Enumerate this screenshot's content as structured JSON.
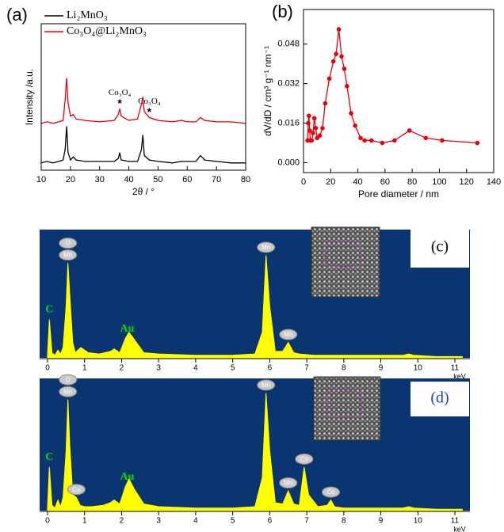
{
  "chart_data": [
    {
      "type": "line",
      "panel_label": "(a)",
      "xlabel": "2θ / °",
      "ylabel": "Intensity /a.u.",
      "xlim": [
        10,
        80
      ],
      "ylim": [
        0,
        100
      ],
      "xticks": [
        10,
        20,
        30,
        40,
        50,
        60,
        70,
        80
      ],
      "x": [
        10,
        12,
        14,
        16,
        17.5,
        18.2,
        18.7,
        19.2,
        20,
        21,
        22,
        25,
        30,
        35,
        36.4,
        36.9,
        37.4,
        40,
        43,
        44.3,
        44.8,
        45.3,
        47,
        50,
        55,
        58,
        60,
        63,
        64.5,
        66,
        70,
        75,
        80
      ],
      "series": [
        {
          "name": "Li₂MnO₃",
          "color": "#000000",
          "values": [
            5,
            6,
            5,
            6,
            7,
            14,
            30,
            12,
            7,
            9,
            7,
            6,
            6,
            6,
            8,
            12,
            7,
            6,
            6,
            14,
            24,
            10,
            7,
            6,
            5,
            6,
            6,
            6,
            10,
            7,
            6,
            5,
            5
          ]
        },
        {
          "name": "Co₃O₄@Li₂MnO₃",
          "color": "#e8000b",
          "values": [
            32,
            33,
            32,
            33,
            34,
            48,
            63,
            46,
            37,
            38,
            35,
            34,
            33,
            34,
            38,
            42,
            37,
            34,
            35,
            45,
            50,
            40,
            36,
            34,
            33,
            34,
            33,
            33,
            36,
            34,
            33,
            33,
            32
          ]
        }
      ],
      "annotations": [
        {
          "text": "Co₃O₄",
          "marker": "*",
          "x": 36.9
        },
        {
          "text": "Co₃O₄",
          "marker": "*",
          "x": 47
        }
      ]
    },
    {
      "type": "line",
      "panel_label": "(b)",
      "xlabel": "Pore diameter / nm",
      "ylabel": "dV/dD / cm³ g⁻¹ nm⁻¹",
      "xlim": [
        0,
        140
      ],
      "ylim": [
        -0.004,
        0.062
      ],
      "xticks": [
        0,
        20,
        40,
        60,
        80,
        100,
        120,
        140
      ],
      "yticks": [
        {
          "value": 0,
          "label": "0.000"
        },
        {
          "value": 0.016,
          "label": "0.016"
        },
        {
          "value": 0.032,
          "label": "0.032"
        },
        {
          "value": 0.048,
          "label": "0.048"
        }
      ],
      "markers": true,
      "x": [
        3,
        3.5,
        4,
        4.5,
        5,
        6,
        7,
        8,
        9,
        10,
        12,
        14,
        16,
        19,
        22,
        24,
        26,
        28,
        30,
        32,
        35,
        38,
        42,
        45,
        50,
        58,
        67,
        78,
        90,
        102,
        128
      ],
      "series": [
        {
          "name": null,
          "color": "#e8000b",
          "values": [
            0.009,
            0.016,
            0.019,
            0.013,
            0.009,
            0.009,
            0.012,
            0.018,
            0.014,
            0.01,
            0.011,
            0.014,
            0.024,
            0.034,
            0.041,
            0.044,
            0.054,
            0.043,
            0.038,
            0.031,
            0.02,
            0.015,
            0.01,
            0.009,
            0.009,
            0.008,
            0.009,
            0.013,
            0.01,
            0.009,
            0.008
          ]
        }
      ]
    },
    {
      "type": "area",
      "panel_label": "(c)",
      "xlabel": "keV",
      "xlim": [
        0,
        11
      ],
      "ylim": [
        0,
        100
      ],
      "xticks": [
        0,
        1,
        2,
        3,
        4,
        5,
        6,
        7,
        8,
        9,
        10,
        11
      ],
      "x": [
        0,
        0.05,
        0.12,
        0.2,
        0.28,
        0.35,
        0.42,
        0.5,
        0.55,
        0.6,
        0.68,
        0.75,
        0.82,
        0.9,
        1.1,
        1.4,
        1.7,
        1.8,
        1.95,
        2.1,
        2.2,
        2.35,
        2.6,
        3,
        4,
        5,
        5.6,
        5.8,
        5.9,
        6.0,
        6.15,
        6.35,
        6.5,
        6.65,
        6.8,
        7.2,
        8,
        9,
        9.6,
        9.75,
        9.9,
        10.5,
        11.2
      ],
      "series": [
        {
          "name": null,
          "color": "#ffff00",
          "values": [
            3,
            30,
            4,
            2,
            6,
            3,
            8,
            40,
            74,
            50,
            12,
            4,
            6,
            8,
            4,
            3,
            5,
            7,
            4,
            15,
            20,
            14,
            4,
            3,
            2,
            2,
            3,
            20,
            80,
            40,
            5,
            5,
            12,
            4,
            3,
            2,
            2,
            2,
            2,
            3,
            2,
            1,
            1
          ]
        }
      ],
      "peaks": [
        {
          "label": "C",
          "x": 0.05,
          "color": "#00e000"
        },
        {
          "label": "O",
          "x": 0.55
        },
        {
          "label": "Mn",
          "x": 0.55
        },
        {
          "label": "Au",
          "x": 2.15,
          "color": "#00e000"
        },
        {
          "label": "Mn",
          "x": 5.9
        },
        {
          "label": "Mn",
          "x": 6.5
        }
      ]
    },
    {
      "type": "area",
      "panel_label": "(d)",
      "xlabel": "keV",
      "xlim": [
        0,
        11
      ],
      "ylim": [
        0,
        100
      ],
      "xticks": [
        0,
        1,
        2,
        3,
        4,
        5,
        6,
        7,
        8,
        9,
        10,
        11
      ],
      "x": [
        0,
        0.05,
        0.12,
        0.2,
        0.28,
        0.35,
        0.42,
        0.5,
        0.55,
        0.6,
        0.68,
        0.78,
        0.88,
        1.0,
        1.2,
        1.5,
        1.7,
        1.8,
        1.95,
        2.1,
        2.2,
        2.35,
        2.6,
        3,
        4,
        5,
        5.6,
        5.8,
        5.9,
        6.0,
        6.15,
        6.35,
        6.5,
        6.65,
        6.8,
        6.93,
        7.05,
        7.3,
        7.55,
        7.65,
        7.75,
        8,
        9,
        9.6,
        9.75,
        9.9,
        10.5,
        11.2
      ],
      "series": [
        {
          "name": null,
          "color": "#ffff00",
          "values": [
            3,
            33,
            4,
            2,
            8,
            3,
            10,
            45,
            84,
            50,
            12,
            10,
            4,
            3,
            3,
            4,
            6,
            8,
            5,
            18,
            24,
            16,
            5,
            3,
            2,
            2,
            3,
            25,
            89,
            45,
            6,
            5,
            15,
            5,
            4,
            33,
            12,
            3,
            4,
            8,
            3,
            2,
            2,
            2,
            3,
            2,
            1,
            1
          ]
        }
      ],
      "peaks": [
        {
          "label": "C",
          "x": 0.05,
          "color": "#00e000"
        },
        {
          "label": "O",
          "x": 0.55
        },
        {
          "label": "Mn",
          "x": 0.55
        },
        {
          "label": "Co",
          "x": 0.78
        },
        {
          "label": "Au",
          "x": 2.15,
          "color": "#00e000"
        },
        {
          "label": "Mn",
          "x": 5.9
        },
        {
          "label": "Mn",
          "x": 6.5
        },
        {
          "label": "Co",
          "x": 6.93
        },
        {
          "label": "Co",
          "x": 7.65
        }
      ]
    }
  ]
}
